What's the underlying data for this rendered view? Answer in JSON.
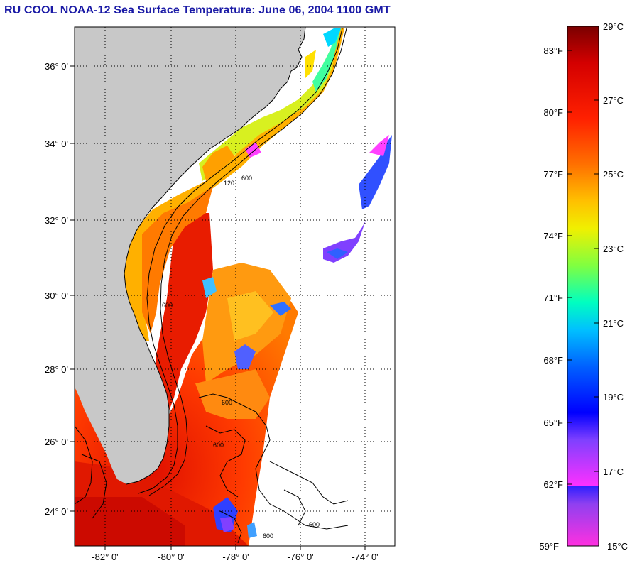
{
  "title": "RU COOL  NOAA-12  Sea Surface Temperature:  June 06, 2004 1100 GMT",
  "map": {
    "lat_labels": [
      "36° 0'",
      "34° 0'",
      "32° 0'",
      "30° 0'",
      "28° 0'",
      "26° 0'",
      "24° 0'"
    ],
    "lon_labels": [
      "-82° 0'",
      "-80° 0'",
      "-78° 0'",
      "-76° 0'",
      "-74° 0'"
    ],
    "isobath_labels": [
      "600",
      "120",
      "600",
      "600",
      "600",
      "600",
      "600"
    ],
    "land_color": "#c8c8c8",
    "cloud_color": "#ffffff"
  },
  "colorbar": {
    "fahrenheit_labels": [
      "83°F",
      "80°F",
      "77°F",
      "74°F",
      "71°F",
      "68°F",
      "65°F",
      "62°F",
      "59°F"
    ],
    "celsius_labels": [
      "29°C",
      "27°C",
      "25°C",
      "23°C",
      "21°C",
      "19°C",
      "17°C",
      "15°C"
    ],
    "colors": [
      "#7a0000",
      "#d40000",
      "#ff2000",
      "#ff7000",
      "#ffc000",
      "#f0f000",
      "#80ff40",
      "#00ffc0",
      "#00c0ff",
      "#0060ff",
      "#0000ff",
      "#8040ff",
      "#ff30ff"
    ]
  }
}
